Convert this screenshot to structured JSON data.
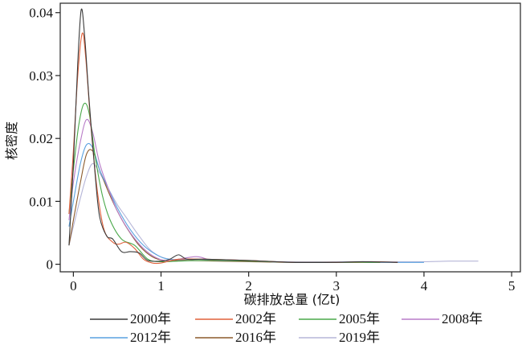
{
  "chart_data": {
    "type": "line",
    "title": "",
    "xlabel": "碳排放总量 (亿t)",
    "ylabel": "核密度",
    "xlim": [
      -0.15,
      5.1
    ],
    "ylim": [
      -0.0012,
      0.0415
    ],
    "x_ticks": [
      "0",
      "1",
      "2",
      "3",
      "4",
      "5"
    ],
    "y_ticks": [
      "0",
      "0.01",
      "0.02",
      "0.03",
      "0.04"
    ],
    "grid": false,
    "legend_position": "bottom",
    "series": [
      {
        "name": "2000年",
        "color": "#3a3a3a",
        "points": [
          [
            -0.05,
            0.003
          ],
          [
            0.0,
            0.016
          ],
          [
            0.05,
            0.032
          ],
          [
            0.09,
            0.0405
          ],
          [
            0.13,
            0.036
          ],
          [
            0.18,
            0.026
          ],
          [
            0.25,
            0.014
          ],
          [
            0.3,
            0.0075
          ],
          [
            0.38,
            0.0045
          ],
          [
            0.45,
            0.004
          ],
          [
            0.55,
            0.002
          ],
          [
            0.65,
            0.002
          ],
          [
            0.75,
            0.0018
          ],
          [
            0.85,
            0.0006
          ],
          [
            1.0,
            0.0005
          ],
          [
            1.1,
            0.0008
          ],
          [
            1.2,
            0.0015
          ],
          [
            1.3,
            0.0008
          ],
          [
            1.5,
            0.0008
          ],
          [
            2.0,
            0.0006
          ],
          [
            2.5,
            0.0003
          ],
          [
            3.0,
            0.0003
          ],
          [
            3.3,
            0.0004
          ],
          [
            3.7,
            0.0003
          ]
        ]
      },
      {
        "name": "2002年",
        "color": "#e0603a",
        "points": [
          [
            -0.05,
            0.008
          ],
          [
            0.0,
            0.018
          ],
          [
            0.05,
            0.03
          ],
          [
            0.1,
            0.0367
          ],
          [
            0.14,
            0.033
          ],
          [
            0.2,
            0.022
          ],
          [
            0.27,
            0.012
          ],
          [
            0.35,
            0.0055
          ],
          [
            0.45,
            0.0035
          ],
          [
            0.52,
            0.0032
          ],
          [
            0.6,
            0.0035
          ],
          [
            0.7,
            0.0025
          ],
          [
            0.8,
            0.0008
          ],
          [
            0.9,
            0.0002
          ],
          [
            1.0,
            0.0002
          ],
          [
            1.2,
            0.0008
          ],
          [
            1.5,
            0.0008
          ],
          [
            2.0,
            0.0006
          ],
          [
            2.5,
            0.0003
          ],
          [
            3.0,
            0.0003
          ],
          [
            3.4,
            0.0004
          ],
          [
            3.7,
            0.0003
          ]
        ]
      },
      {
        "name": "2005年",
        "color": "#4aa84a",
        "points": [
          [
            -0.05,
            0.008
          ],
          [
            0.0,
            0.015
          ],
          [
            0.06,
            0.022
          ],
          [
            0.12,
            0.0255
          ],
          [
            0.18,
            0.024
          ],
          [
            0.25,
            0.017
          ],
          [
            0.33,
            0.011
          ],
          [
            0.42,
            0.007
          ],
          [
            0.55,
            0.004
          ],
          [
            0.7,
            0.003
          ],
          [
            0.85,
            0.0008
          ],
          [
            1.0,
            0.0004
          ],
          [
            1.2,
            0.0005
          ],
          [
            1.5,
            0.0006
          ],
          [
            2.0,
            0.0005
          ],
          [
            2.5,
            0.0003
          ],
          [
            3.0,
            0.0003
          ],
          [
            3.5,
            0.0003
          ]
        ]
      },
      {
        "name": "2008年",
        "color": "#b87cc8",
        "points": [
          [
            -0.05,
            0.007
          ],
          [
            0.0,
            0.013
          ],
          [
            0.08,
            0.0195
          ],
          [
            0.15,
            0.023
          ],
          [
            0.22,
            0.021
          ],
          [
            0.3,
            0.016
          ],
          [
            0.4,
            0.012
          ],
          [
            0.5,
            0.0085
          ],
          [
            0.65,
            0.005
          ],
          [
            0.8,
            0.0025
          ],
          [
            0.95,
            0.001
          ],
          [
            1.1,
            0.0006
          ],
          [
            1.4,
            0.0012
          ],
          [
            1.6,
            0.0006
          ],
          [
            2.0,
            0.0005
          ],
          [
            2.5,
            0.0003
          ],
          [
            3.0,
            0.0003
          ],
          [
            3.5,
            0.0003
          ]
        ]
      },
      {
        "name": "2012年",
        "color": "#5aa2e0",
        "points": [
          [
            -0.05,
            0.006
          ],
          [
            0.0,
            0.01
          ],
          [
            0.08,
            0.016
          ],
          [
            0.15,
            0.019
          ],
          [
            0.22,
            0.0185
          ],
          [
            0.3,
            0.015
          ],
          [
            0.4,
            0.012
          ],
          [
            0.5,
            0.009
          ],
          [
            0.65,
            0.0055
          ],
          [
            0.8,
            0.003
          ],
          [
            0.95,
            0.0015
          ],
          [
            1.1,
            0.0008
          ],
          [
            1.4,
            0.0008
          ],
          [
            2.0,
            0.0005
          ],
          [
            2.5,
            0.0003
          ],
          [
            3.0,
            0.0003
          ],
          [
            3.5,
            0.0003
          ],
          [
            4.0,
            0.0003
          ]
        ]
      },
      {
        "name": "2016年",
        "color": "#8b5a2b",
        "points": [
          [
            -0.05,
            0.003
          ],
          [
            0.0,
            0.007
          ],
          [
            0.08,
            0.013
          ],
          [
            0.15,
            0.0175
          ],
          [
            0.22,
            0.018
          ],
          [
            0.3,
            0.015
          ],
          [
            0.4,
            0.0115
          ],
          [
            0.5,
            0.0085
          ],
          [
            0.6,
            0.006
          ],
          [
            0.75,
            0.003
          ],
          [
            0.9,
            0.0012
          ],
          [
            1.05,
            0.0006
          ],
          [
            1.3,
            0.0006
          ],
          [
            2.0,
            0.0004
          ],
          [
            2.5,
            0.0003
          ],
          [
            3.0,
            0.0003
          ],
          [
            3.5,
            0.0003
          ]
        ]
      },
      {
        "name": "2019年",
        "color": "#b6b6d8",
        "points": [
          [
            -0.05,
            0.003
          ],
          [
            0.0,
            0.006
          ],
          [
            0.08,
            0.0105
          ],
          [
            0.15,
            0.014
          ],
          [
            0.22,
            0.016
          ],
          [
            0.3,
            0.0145
          ],
          [
            0.4,
            0.012
          ],
          [
            0.5,
            0.0095
          ],
          [
            0.6,
            0.0075
          ],
          [
            0.75,
            0.0045
          ],
          [
            0.9,
            0.002
          ],
          [
            1.1,
            0.0008
          ],
          [
            1.5,
            0.0006
          ],
          [
            2.0,
            0.0005
          ],
          [
            2.5,
            0.0004
          ],
          [
            3.0,
            0.0004
          ],
          [
            3.5,
            0.0004
          ],
          [
            4.0,
            0.0004
          ],
          [
            4.3,
            0.0005
          ],
          [
            4.62,
            0.0005
          ]
        ]
      }
    ]
  }
}
